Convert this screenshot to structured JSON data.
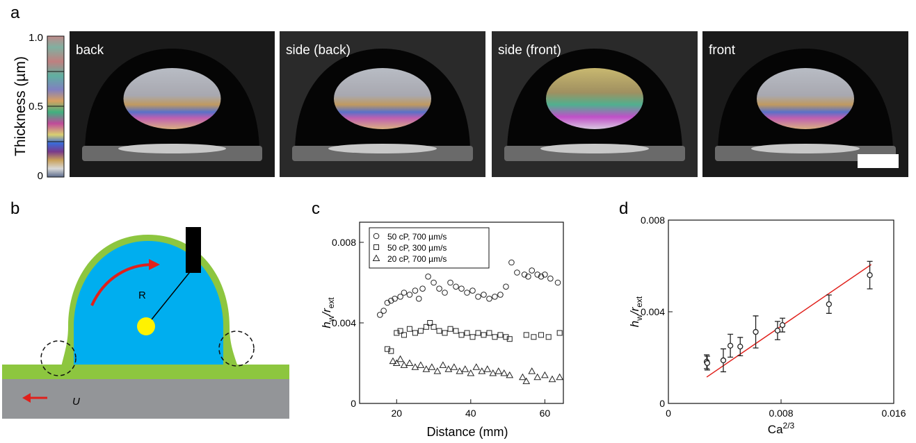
{
  "panel_labels": [
    "a",
    "b",
    "c",
    "d"
  ],
  "panel_a": {
    "colorbar_label": "Thickness (µm)",
    "colorbar_ticks": [
      "1.0",
      "0.5",
      "0"
    ],
    "photos": [
      "back",
      "side (back)",
      "side (front)",
      "front"
    ]
  },
  "panel_b": {
    "radius_label": "R",
    "velocity_label": "U"
  },
  "chart_data": [
    {
      "type": "scatter",
      "xlabel": "Distance (mm)",
      "ylabel": [
        "h",
        "w",
        "/r",
        "ext"
      ],
      "xlim": [
        10,
        65
      ],
      "ylim": [
        0,
        0.009
      ],
      "xticks": [
        20,
        40,
        60
      ],
      "yticks": [
        0,
        0.004,
        0.008
      ],
      "legend": "top-left",
      "series": [
        {
          "name": "50 cP, 700 µm/s",
          "marker": "circle",
          "color": "#222222",
          "x": [
            15.5,
            16.5,
            17.5,
            18.5,
            19.5,
            21,
            22,
            23.5,
            25,
            26,
            27,
            28.5,
            30,
            31.5,
            33,
            34.5,
            36,
            37.5,
            39,
            40.5,
            42,
            43.5,
            45,
            46.5,
            48,
            49.5,
            51,
            52.5,
            54.5,
            55.5,
            56.5,
            58,
            59,
            60,
            61.5,
            63.5
          ],
          "values": [
            0.0044,
            0.0046,
            0.005,
            0.0051,
            0.0052,
            0.0053,
            0.0055,
            0.0054,
            0.0056,
            0.0052,
            0.0057,
            0.0063,
            0.006,
            0.0057,
            0.0055,
            0.006,
            0.0058,
            0.0057,
            0.0055,
            0.0056,
            0.0053,
            0.0054,
            0.0052,
            0.0053,
            0.0054,
            0.0058,
            0.007,
            0.0065,
            0.0064,
            0.0063,
            0.0066,
            0.0064,
            0.0063,
            0.0064,
            0.0062,
            0.006
          ]
        },
        {
          "name": "50 cP, 300 µm/s",
          "marker": "square",
          "color": "#222222",
          "x": [
            17.5,
            18.5,
            20,
            21,
            22,
            23.5,
            25,
            26.5,
            28,
            29,
            30,
            31.5,
            33,
            34.5,
            36,
            37.5,
            39,
            40.5,
            42,
            43.5,
            45,
            46.5,
            48,
            49.5,
            50.5,
            55,
            57,
            59,
            61,
            64
          ],
          "values": [
            0.0027,
            0.0026,
            0.0035,
            0.0036,
            0.0034,
            0.0037,
            0.0035,
            0.0036,
            0.0038,
            0.004,
            0.0038,
            0.0036,
            0.0035,
            0.0037,
            0.0036,
            0.0034,
            0.0035,
            0.0033,
            0.0035,
            0.0034,
            0.0035,
            0.0033,
            0.0034,
            0.0033,
            0.0032,
            0.0034,
            0.0033,
            0.0034,
            0.0033,
            0.0035
          ]
        },
        {
          "name": "20 cP, 700 µm/s",
          "marker": "triangle",
          "color": "#222222",
          "x": [
            19,
            20,
            21,
            22,
            23.5,
            25,
            26.5,
            28,
            29.5,
            31,
            32.5,
            34,
            35.5,
            37,
            38.5,
            40,
            41.5,
            43,
            44.5,
            46,
            47.5,
            49,
            50.5,
            54,
            55,
            56.5,
            58,
            60,
            62,
            64
          ],
          "values": [
            0.0021,
            0.002,
            0.0022,
            0.0019,
            0.002,
            0.0018,
            0.0019,
            0.0017,
            0.0018,
            0.0016,
            0.0019,
            0.0017,
            0.0018,
            0.0016,
            0.0017,
            0.0015,
            0.0018,
            0.0016,
            0.0017,
            0.0015,
            0.0016,
            0.0015,
            0.0014,
            0.0013,
            0.0011,
            0.0016,
            0.0013,
            0.0014,
            0.0012,
            0.0013
          ]
        }
      ]
    },
    {
      "type": "errorbar",
      "xlabel": [
        "Ca",
        "2/3"
      ],
      "ylabel": [
        "h",
        "w",
        "/r",
        "ext"
      ],
      "xlim": [
        0,
        0.016
      ],
      "ylim": [
        0,
        0.008
      ],
      "xticks": [
        0,
        0.008,
        0.016
      ],
      "yticks": [
        0,
        0.004,
        0.008
      ],
      "color": "#222222",
      "x": [
        0.00272,
        0.00276,
        0.0039,
        0.0044,
        0.0051,
        0.0062,
        0.00775,
        0.0081,
        0.0114,
        0.0143
      ],
      "values": [
        0.00182,
        0.00176,
        0.00188,
        0.00252,
        0.00248,
        0.00312,
        0.00318,
        0.00342,
        0.00433,
        0.0056
      ],
      "errors": [
        0.0003,
        0.0003,
        0.0005,
        0.0005,
        0.0004,
        0.0007,
        0.0004,
        0.0003,
        0.0004,
        0.0006
      ],
      "fit": {
        "x": [
          0.00272,
          0.0144
        ],
        "values": [
          0.00115,
          0.00606
        ],
        "color": "#e0201b"
      }
    }
  ]
}
